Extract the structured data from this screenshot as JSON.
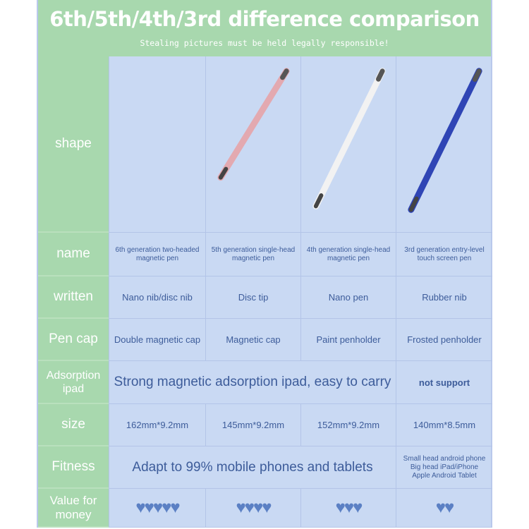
{
  "header": {
    "title": "6th/5th/4th/3rd difference comparison",
    "subtitle": "Stealing pictures must be held legally responsible!"
  },
  "rows": {
    "shape": "shape",
    "name": "name",
    "written": "written",
    "pen_cap": "Pen cap",
    "adsorption": "Adsorption ipad",
    "size": "size",
    "fitness": "Fitness",
    "value": "Value for money"
  },
  "pens": [
    {
      "name": "6th generation two-headed magnetic pen",
      "written": "Nano nib/disc nib",
      "cap": "Double magnetic cap",
      "size": "162mm*9.2mm",
      "hearts": 5,
      "color": "#1c1c22"
    },
    {
      "name": "5th generation single-head magnetic pen",
      "written": "Disc tip",
      "cap": "Magnetic cap",
      "size": "145mm*9.2mm",
      "hearts": 4,
      "color": "#e3a9b0"
    },
    {
      "name": "4th generation single-head magnetic pen",
      "written": "Nano pen",
      "cap": "Paint penholder",
      "size": "152mm*9.2mm",
      "hearts": 3,
      "color": "#f2f2f2"
    },
    {
      "name": "3rd generation entry-level touch screen pen",
      "written": "Rubber nib",
      "cap": "Frosted penholder",
      "size": "140mm*8.5mm",
      "hearts": 2,
      "color": "#2f45b5"
    }
  ],
  "adsorption": {
    "shared": "Strong magnetic adsorption ipad, easy to carry",
    "third": "not support"
  },
  "fitness": {
    "shared": "Adapt to 99% mobile phones and tablets",
    "third": "Small head android phone\nBig head iPad/iPhone\nApple Android Tablet"
  },
  "heart_icon": "♥"
}
